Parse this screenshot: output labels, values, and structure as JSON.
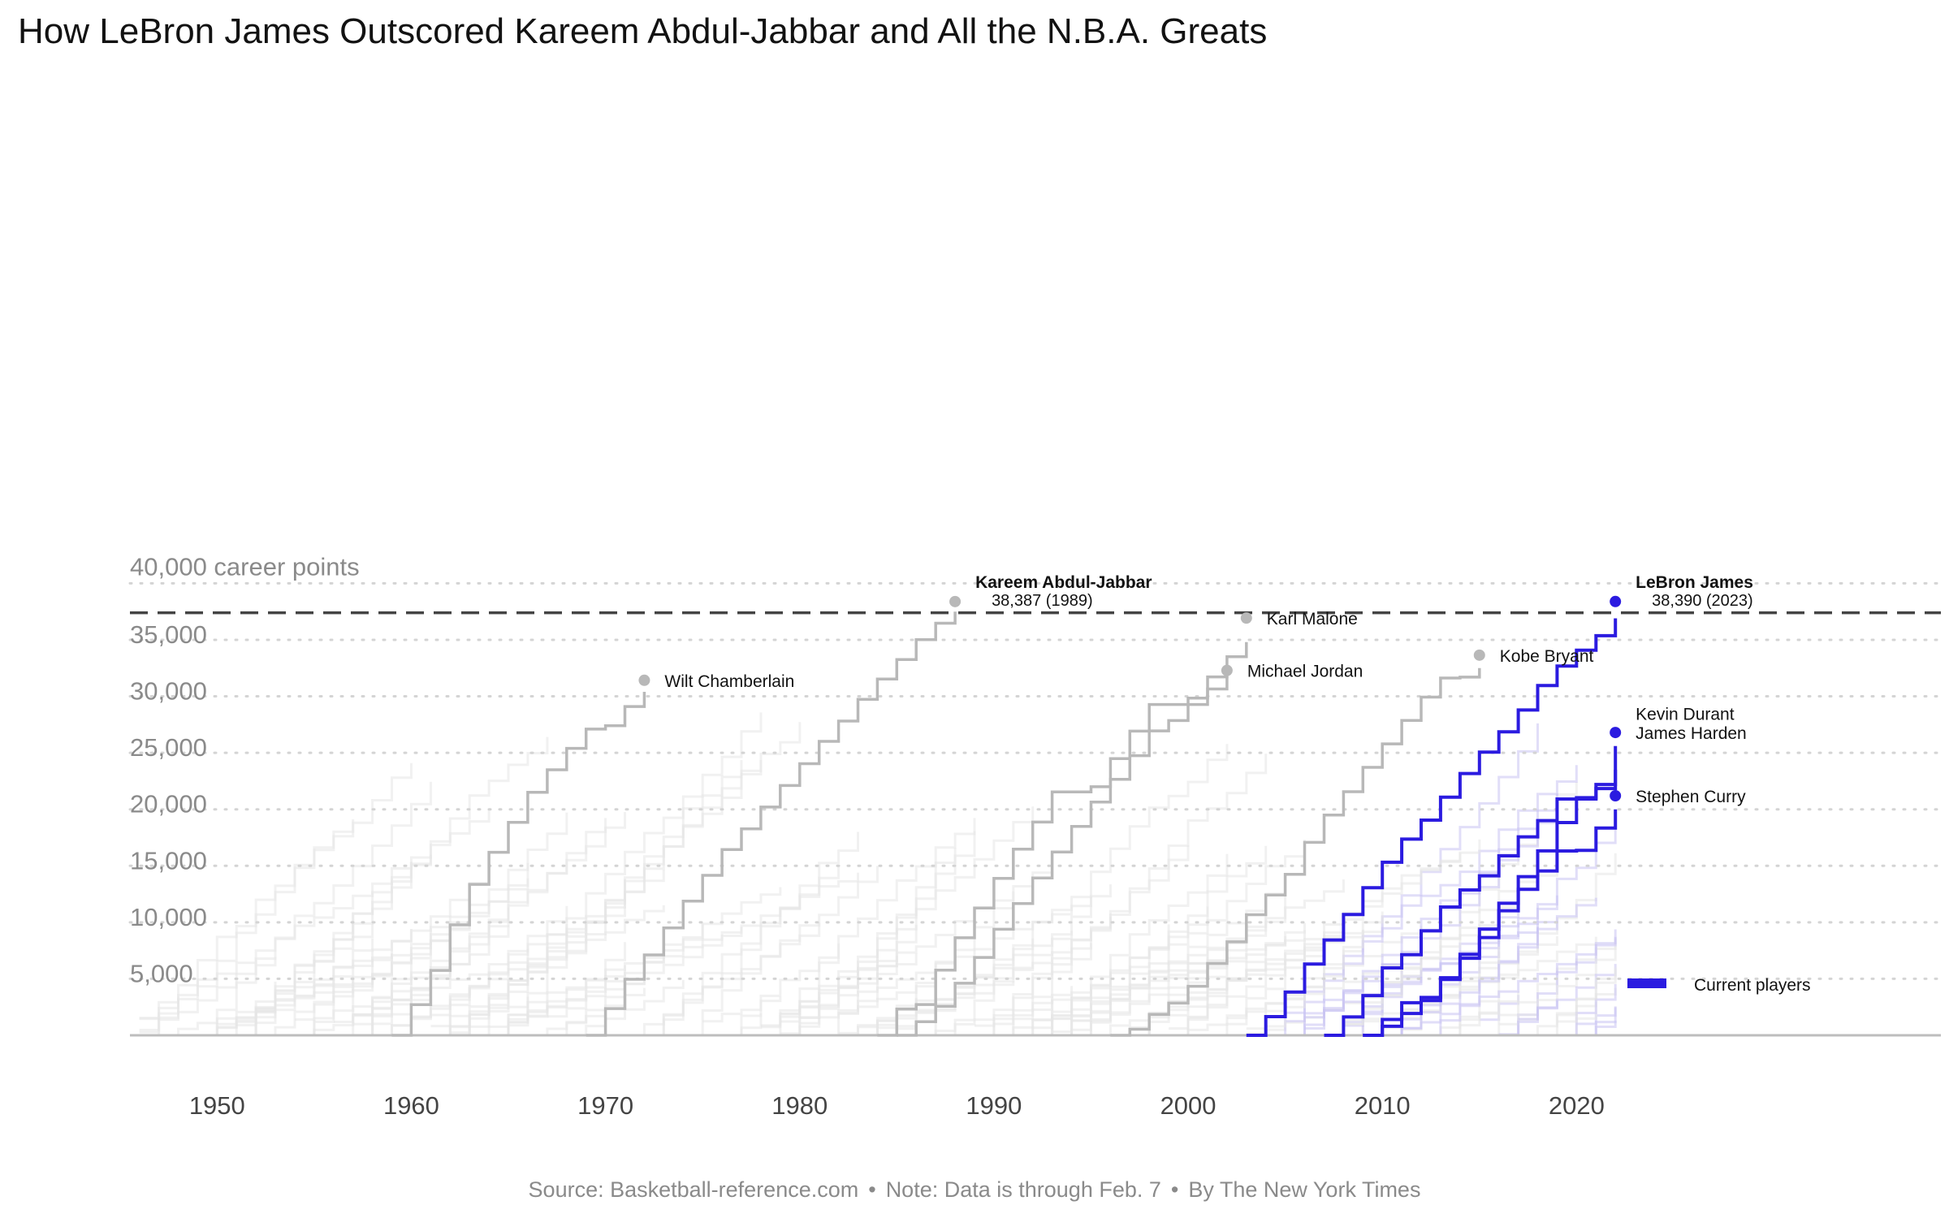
{
  "title": "How LeBron James Outscored Kareem Abdul-Jabbar and All the N.B.A. Greats",
  "footer": {
    "source": "Source: Basketball-reference.com",
    "note": "Note: Data is through Feb. 7",
    "byline": "By The New York Times",
    "separator": "•"
  },
  "colors": {
    "current": "#2b1be0",
    "legend_great": "#b8b8b8",
    "background_line": "#e6e6e6",
    "background_current": "#c9c3f3",
    "axis_text": "#8a8a8a",
    "record_line": "#444444"
  },
  "chart_data": {
    "type": "line",
    "step": true,
    "title": "How LeBron James Outscored Kareem Abdul-Jabbar and All the N.B.A. Greats",
    "xlabel": "",
    "ylabel": "40,000 career points",
    "xlim": [
      1950,
      2030
    ],
    "ylim": [
      0,
      40000
    ],
    "x_ticks": [
      "1950",
      "1960",
      "1970",
      "1980",
      "1990",
      "2000",
      "2010",
      "2020"
    ],
    "y_ticks": [
      "5,000",
      "10,000",
      "15,000",
      "20,000",
      "25,000",
      "30,000",
      "35,000"
    ],
    "y_top_label": "40,000 career points",
    "grid": "horizontal dotted",
    "record_line": 37400,
    "legend": {
      "label": "Current players",
      "position": "bottom-right"
    },
    "series": [
      {
        "name": "Wilt Chamberlain",
        "group": "legend",
        "x": [
          1959,
          1960,
          1961,
          1962,
          1963,
          1964,
          1965,
          1966,
          1967,
          1968,
          1969,
          1970,
          1971,
          1972
        ],
        "y": [
          0,
          2707,
          5740,
          9774,
          13360,
          16200,
          18850,
          21500,
          23500,
          25400,
          27100,
          27400,
          29100,
          30400
        ]
      },
      {
        "name": "Kareem Abdul-Jabbar",
        "group": "legend",
        "label_value": "38,387 (1989)",
        "x": [
          1969,
          1970,
          1971,
          1972,
          1973,
          1974,
          1975,
          1976,
          1977,
          1978,
          1979,
          1980,
          1981,
          1982,
          1983,
          1984,
          1985,
          1986,
          1987,
          1988
        ],
        "y": [
          0,
          2361,
          4957,
          7116,
          9507,
          11876,
          14159,
          16436,
          18276,
          20199,
          22106,
          24040,
          26018,
          27811,
          29740,
          31527,
          33262,
          35015,
          36474,
          37500
        ]
      },
      {
        "name": "Karl Malone",
        "group": "legend",
        "x": [
          1985,
          1986,
          1987,
          1988,
          1989,
          1990,
          1991,
          1992,
          1993,
          1994,
          1995,
          1996,
          1997,
          1998,
          1999,
          2000,
          2001,
          2002,
          2003
        ],
        "y": [
          0,
          1203,
          2573,
          4607,
          6889,
          9382,
          11656,
          13928,
          16222,
          18485,
          20642,
          22659,
          24749,
          26939,
          27858,
          29838,
          31722,
          33505,
          34800
        ]
      },
      {
        "name": "Michael Jordan",
        "group": "legend",
        "x": [
          1984,
          1985,
          1986,
          1987,
          1988,
          1989,
          1990,
          1991,
          1992,
          1993,
          1994,
          1995,
          1996,
          1997,
          1998,
          1999,
          2000,
          2001,
          2002
        ],
        "y": [
          0,
          2313,
          2721,
          5762,
          8630,
          11263,
          13889,
          16469,
          18873,
          21541,
          21541,
          21998,
          24489,
          26920,
          29277,
          29277,
          29277,
          30652,
          32100
        ]
      },
      {
        "name": "Kobe Bryant",
        "group": "legend",
        "x": [
          1996,
          1997,
          1998,
          1999,
          2000,
          2001,
          2002,
          2003,
          2004,
          2005,
          2006,
          2007,
          2008,
          2009,
          2010,
          2011,
          2012,
          2013,
          2014,
          2015
        ],
        "y": [
          0,
          539,
          1852,
          2847,
          4344,
          6363,
          8269,
          10669,
          12415,
          14246,
          17078,
          19496,
          21562,
          23712,
          25789,
          27868,
          29933,
          31617,
          31700,
          32500
        ]
      },
      {
        "name": "LeBron James",
        "group": "current",
        "label_value": "38,390 (2023)",
        "x": [
          2003,
          2004,
          2005,
          2006,
          2007,
          2008,
          2009,
          2010,
          2011,
          2012,
          2013,
          2014,
          2015,
          2016,
          2017,
          2018,
          2019,
          2020,
          2021,
          2022
        ],
        "y": [
          0,
          1654,
          3829,
          6307,
          8436,
          10686,
          13056,
          15314,
          17362,
          19045,
          21081,
          23170,
          25068,
          26863,
          28787,
          30956,
          32685,
          34087,
          35367,
          36900
        ]
      },
      {
        "name": "Kevin Durant",
        "group": "current",
        "x": [
          2007,
          2008,
          2009,
          2010,
          2011,
          2012,
          2013,
          2014,
          2015,
          2016,
          2017,
          2018,
          2019,
          2020,
          2021,
          2022
        ],
        "y": [
          0,
          1624,
          3516,
          5968,
          7129,
          9240,
          11352,
          12862,
          14112,
          15880,
          17566,
          19000,
          20913,
          20913,
          21841,
          23500
        ]
      },
      {
        "name": "James Harden",
        "group": "current",
        "x": [
          2009,
          2010,
          2011,
          2012,
          2013,
          2014,
          2015,
          2016,
          2017,
          2018,
          2019,
          2020,
          2021,
          2022
        ],
        "y": [
          0,
          800,
          1930,
          3070,
          5093,
          7163,
          9394,
          11685,
          14041,
          16320,
          18830,
          21031,
          22200,
          25600
        ]
      },
      {
        "name": "Stephen Curry",
        "group": "current",
        "x": [
          2009,
          2010,
          2011,
          2012,
          2013,
          2014,
          2015,
          2016,
          2017,
          2018,
          2019,
          2020,
          2021,
          2022
        ],
        "y": [
          0,
          1399,
          2884,
          3350,
          4947,
          6819,
          8650,
          11026,
          12916,
          14542,
          16311,
          16371,
          18346,
          20000
        ]
      }
    ]
  },
  "annotations": [
    {
      "series": "Wilt Chamberlain",
      "text": "Wilt Chamberlain",
      "year": 1972,
      "points": 31419,
      "style": "great"
    },
    {
      "series": "Kareem Abdul-Jabbar",
      "text": "Kareem Abdul-Jabbar",
      "sub": "38,387 (1989)",
      "year": 1988,
      "points": 38387,
      "style": "great-bold"
    },
    {
      "series": "Karl Malone",
      "text": "Karl Malone",
      "year": 2003,
      "points": 36928,
      "style": "great"
    },
    {
      "series": "Michael Jordan",
      "text": "Michael Jordan",
      "year": 2002,
      "points": 32292,
      "style": "great"
    },
    {
      "series": "Kobe Bryant",
      "text": "Kobe Bryant",
      "year": 2015,
      "points": 33643,
      "style": "great"
    },
    {
      "series": "LeBron James",
      "text": "LeBron James",
      "sub": "38,390 (2023)",
      "year": 2022,
      "points": 38390,
      "style": "current-bold"
    },
    {
      "series": "Kevin Durant",
      "text": "Kevin Durant",
      "year": 2022,
      "points": 28500,
      "style": "label-only"
    },
    {
      "series": "James Harden",
      "text": "James Harden",
      "year": 2022,
      "points": 26800,
      "style": "current"
    },
    {
      "series": "Stephen Curry",
      "text": "Stephen Curry",
      "year": 2022,
      "points": 21200,
      "style": "current"
    }
  ]
}
